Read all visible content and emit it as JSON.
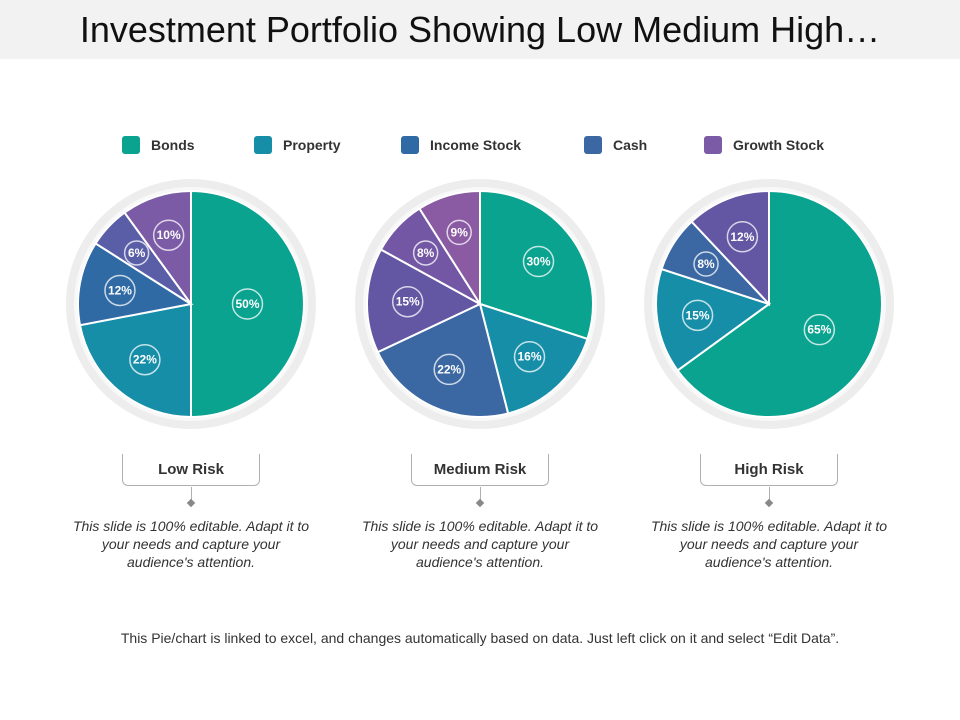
{
  "title": "Investment Portfolio Showing Low Medium High…",
  "colors": {
    "bonds": "#0aa38f",
    "property": "#168ea8",
    "income_stock": "#2f6aa5",
    "cash": "#3b67a2",
    "growth_stock": "#7b5aa6",
    "cash_medium": "#6356a3",
    "growth_medium": "#8a5aa3"
  },
  "legend": [
    {
      "label": "Bonds",
      "color": "#0aa38f"
    },
    {
      "label": "Property",
      "color": "#168ea8"
    },
    {
      "label": "Income Stock",
      "color": "#2f6aa5"
    },
    {
      "label": "Cash",
      "color": "#3b67a2"
    },
    {
      "label": "Growth Stock",
      "color": "#7b5aa6"
    }
  ],
  "chart_data": [
    {
      "type": "pie",
      "title": "Low Risk",
      "slices": [
        {
          "label": "50%",
          "value": 50,
          "color": "#0aa38f"
        },
        {
          "label": "22%",
          "value": 22,
          "color": "#168ea8"
        },
        {
          "label": "12%",
          "value": 12,
          "color": "#2f6aa5"
        },
        {
          "label": "6%",
          "value": 6,
          "color": "#5a5ea6"
        },
        {
          "label": "10%",
          "value": 10,
          "color": "#7b5aa6"
        }
      ]
    },
    {
      "type": "pie",
      "title": "Medium Risk",
      "slices": [
        {
          "label": "30%",
          "value": 30,
          "color": "#0aa38f"
        },
        {
          "label": "16%",
          "value": 16,
          "color": "#168ea8"
        },
        {
          "label": "22%",
          "value": 22,
          "color": "#3b67a2"
        },
        {
          "label": "15%",
          "value": 15,
          "color": "#6356a3"
        },
        {
          "label": "8%",
          "value": 8,
          "color": "#7357a4"
        },
        {
          "label": "9%",
          "value": 9,
          "color": "#8a5aa3"
        }
      ]
    },
    {
      "type": "pie",
      "title": "High Risk",
      "slices": [
        {
          "label": "65%",
          "value": 65,
          "color": "#0aa38f"
        },
        {
          "label": "15%",
          "value": 15,
          "color": "#168ea8"
        },
        {
          "label": "8%",
          "value": 8,
          "color": "#3b67a2"
        },
        {
          "label": "12%",
          "value": 12,
          "color": "#6356a3"
        }
      ]
    }
  ],
  "risk_labels": [
    "Low Risk",
    "Medium Risk",
    "High Risk"
  ],
  "description": "This slide is 100% editable.  Adapt it to your needs and capture your audience's attention.",
  "footer": "This Pie/chart is linked to excel, and changes automatically based on data.  Just left click on it and select “Edit Data”."
}
